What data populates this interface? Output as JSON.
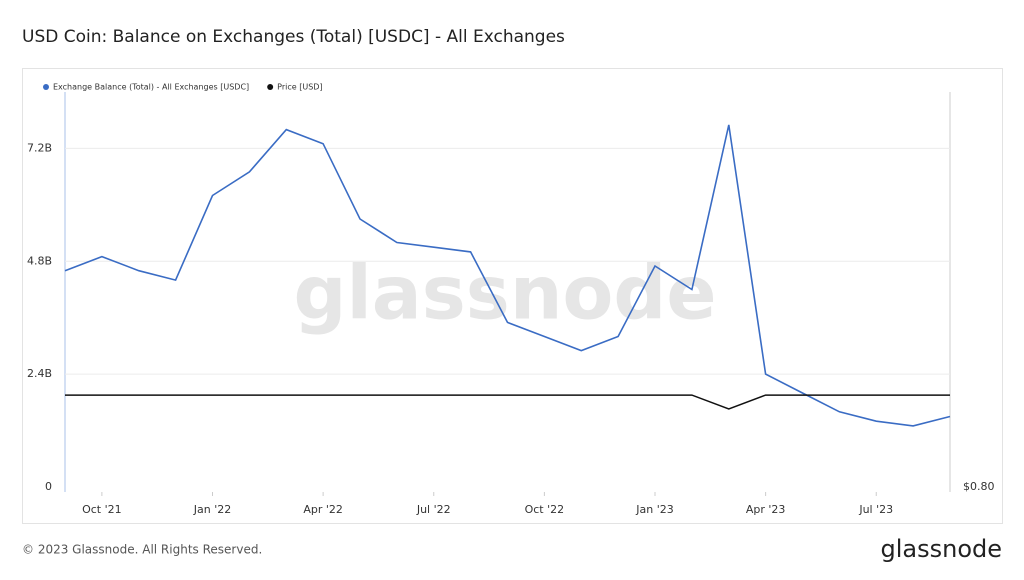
{
  "chart_data": {
    "type": "line",
    "title": "USD Coin: Balance on Exchanges (Total) [USDC] - All Exchanges",
    "watermark": "glassnode",
    "footer": "© 2023 Glassnode. All Rights Reserved.",
    "brand": "glassnode",
    "x": [
      "2021-09",
      "2021-10",
      "2021-11",
      "2021-12",
      "2022-01",
      "2022-02",
      "2022-03",
      "2022-04",
      "2022-05",
      "2022-06",
      "2022-07",
      "2022-08",
      "2022-09",
      "2022-10",
      "2022-11",
      "2022-12",
      "2023-01",
      "2023-02",
      "2023-03",
      "2023-04",
      "2023-05",
      "2023-06",
      "2023-07",
      "2023-08",
      "2023-09"
    ],
    "series": [
      {
        "name": "Exchange Balance (Total) - All Exchanges [USDC]",
        "color": "#3a6cc4",
        "values": [
          4600000000.0,
          4900000000.0,
          4600000000.0,
          4400000000.0,
          6200000000.0,
          6700000000.0,
          7600000000.0,
          7300000000.0,
          5700000000.0,
          5200000000.0,
          5100000000.0,
          5000000000.0,
          3500000000.0,
          3200000000.0,
          2900000000.0,
          3200000000.0,
          4700000000.0,
          4200000000.0,
          7700000000.0,
          2400000000.0,
          2000000000.0,
          1600000000.0,
          1400000000.0,
          1300000000.0,
          1500000000.0
        ]
      },
      {
        "name": "Price [USD]",
        "color": "#111111",
        "axis": "y2",
        "values": [
          1.0,
          1.0,
          1.0,
          1.0,
          1.0,
          1.0,
          1.0,
          1.0,
          1.0,
          1.0,
          1.0,
          1.0,
          1.0,
          1.0,
          1.0,
          1.0,
          1.0,
          1.0,
          0.97,
          1.0,
          1.0,
          1.0,
          1.0,
          1.0,
          1.0
        ]
      }
    ],
    "xlim": [
      "2021-09",
      "2023-09"
    ],
    "xticks": [
      {
        "value": "2021-10",
        "label": "Oct '21"
      },
      {
        "value": "2022-01",
        "label": "Jan '22"
      },
      {
        "value": "2022-04",
        "label": "Apr '22"
      },
      {
        "value": "2022-07",
        "label": "Jul '22"
      },
      {
        "value": "2022-10",
        "label": "Oct '22"
      },
      {
        "value": "2023-01",
        "label": "Jan '23"
      },
      {
        "value": "2023-04",
        "label": "Apr '23"
      },
      {
        "value": "2023-07",
        "label": "Jul '23"
      }
    ],
    "ylim": [
      0,
      8400000000.0
    ],
    "yticks": [
      0,
      {
        "value": 2400000000.0,
        "label": "2.4B"
      },
      {
        "value": 4800000000.0,
        "label": "4.8B"
      },
      {
        "value": 7200000000.0,
        "label": "7.2B"
      }
    ],
    "y2lim": [
      0.8,
      1.66
    ],
    "y2ticks": [
      {
        "value": 0.8,
        "label": "$0.80"
      }
    ],
    "grid": true,
    "legend": "top-left"
  }
}
